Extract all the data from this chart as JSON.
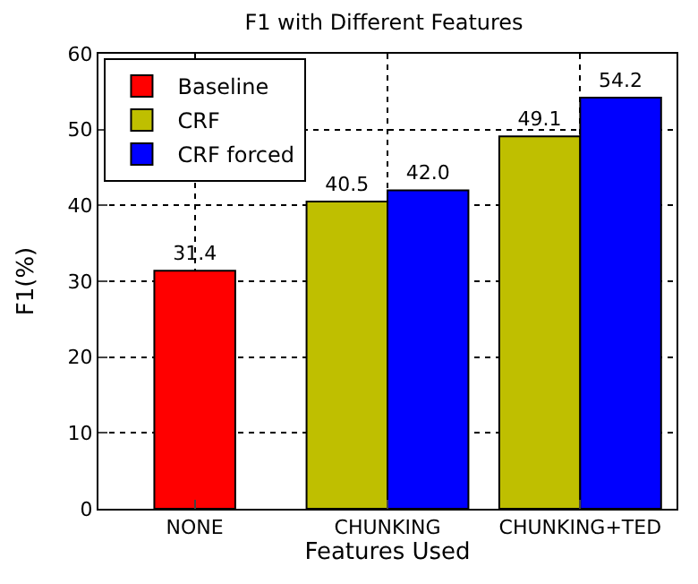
{
  "chart_data": {
    "type": "bar",
    "title": "F1 with Different Features",
    "xlabel": "Features Used",
    "ylabel": "F1(%)",
    "categories": [
      "NONE",
      "CHUNKING",
      "CHUNKING+TED"
    ],
    "series": [
      {
        "name": "Baseline",
        "color": "#ff0000",
        "values": [
          31.4,
          null,
          null
        ],
        "value_labels": [
          "31.4",
          null,
          null
        ]
      },
      {
        "name": "CRF",
        "color": "#bfbf00",
        "values": [
          null,
          40.5,
          49.1
        ],
        "value_labels": [
          null,
          "40.5",
          "49.1"
        ]
      },
      {
        "name": "CRF forced",
        "color": "#0000ff",
        "values": [
          null,
          42.0,
          54.2
        ],
        "value_labels": [
          null,
          "42.0",
          "54.2"
        ]
      }
    ],
    "ylim": [
      0,
      60
    ],
    "yticks": [
      0,
      10,
      20,
      30,
      40,
      50,
      60
    ],
    "grid": true,
    "legend": "top left"
  }
}
